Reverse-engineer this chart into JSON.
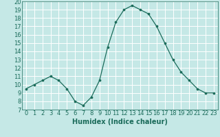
{
  "x": [
    0,
    1,
    2,
    3,
    4,
    5,
    6,
    7,
    8,
    9,
    10,
    11,
    12,
    13,
    14,
    15,
    16,
    17,
    18,
    19,
    20,
    21,
    22,
    23
  ],
  "y": [
    9.5,
    10.0,
    10.5,
    11.0,
    10.5,
    9.5,
    8.0,
    7.5,
    8.5,
    10.5,
    14.5,
    17.5,
    19.0,
    19.5,
    19.0,
    18.5,
    17.0,
    15.0,
    13.0,
    11.5,
    10.5,
    9.5,
    9.0,
    9.0
  ],
  "line_color": "#1a6b5a",
  "marker_color": "#1a6b5a",
  "bg_color": "#c5e8e6",
  "grid_color": "#ffffff",
  "tick_color": "#1a6b5a",
  "xlabel": "Humidex (Indice chaleur)",
  "xlim": [
    -0.5,
    23.5
  ],
  "ylim": [
    7,
    20
  ],
  "yticks": [
    7,
    8,
    9,
    10,
    11,
    12,
    13,
    14,
    15,
    16,
    17,
    18,
    19,
    20
  ],
  "xticks": [
    0,
    1,
    2,
    3,
    4,
    5,
    6,
    7,
    8,
    9,
    10,
    11,
    12,
    13,
    14,
    15,
    16,
    17,
    18,
    19,
    20,
    21,
    22,
    23
  ],
  "xlabel_fontsize": 7,
  "tick_fontsize": 6
}
